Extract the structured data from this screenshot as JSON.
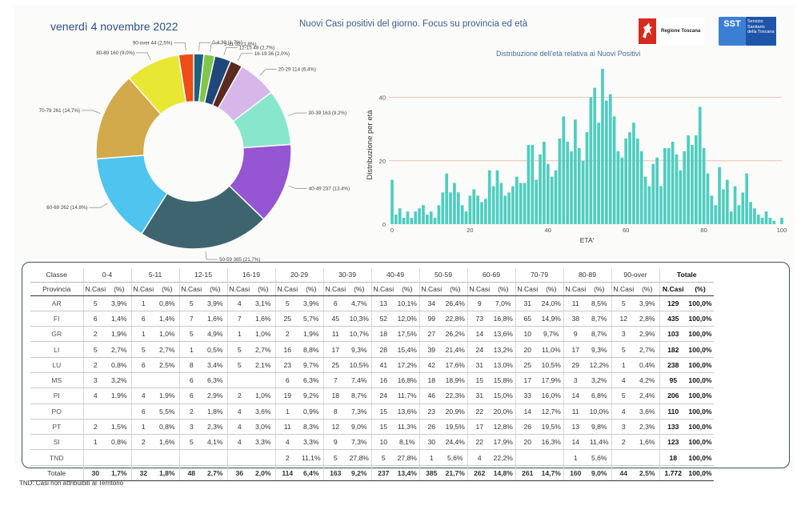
{
  "header": {
    "date": "venerdì 4 novembre 2022",
    "title": "Nuovi Casi positivi del giorno. Focus su provincia ed età"
  },
  "logos": {
    "regione": "Regione Toscana",
    "sst_mark": "SST",
    "sst_name": "Servizio Sanitario della Toscana"
  },
  "chart_data": [
    {
      "type": "pie",
      "donut": true,
      "slices": [
        {
          "label": "0-4 30 (1,7%)",
          "value": 30,
          "color": "#1f5f80"
        },
        {
          "label": "5-11 32 (1,8%)",
          "value": 32,
          "color": "#7fc64a"
        },
        {
          "label": "12-15 48 (2,7%)",
          "value": 48,
          "color": "#20467a"
        },
        {
          "label": "16-19 36 (2,0%)",
          "value": 36,
          "color": "#5a2a1e"
        },
        {
          "label": "20-29 114 (6,4%)",
          "value": 114,
          "color": "#d7b6ea"
        },
        {
          "label": "30-39 163 (9,2%)",
          "value": 163,
          "color": "#87e6cc"
        },
        {
          "label": "40-49 237 (13,4%)",
          "value": 237,
          "color": "#9655d2"
        },
        {
          "label": "50-59 385 (21,7%)",
          "value": 385,
          "color": "#3e6470"
        },
        {
          "label": "60-69 262 (14,8%)",
          "value": 262,
          "color": "#4ec4ef"
        },
        {
          "label": "70-79 261 (14,7%)",
          "value": 261,
          "color": "#d2a94b"
        },
        {
          "label": "80-89 160 (9,0%)",
          "value": 160,
          "color": "#e8e734"
        },
        {
          "label": "90-over 44 (2,5%)",
          "value": 44,
          "color": "#ef4d16"
        }
      ]
    },
    {
      "type": "bar",
      "title": "Distribuzione dell'età relativa ai Nuovi Positivi",
      "xlabel": "ETA'",
      "ylabel": "Distribuzione per età",
      "xlim": [
        0,
        100
      ],
      "ylim": [
        0,
        50
      ],
      "yticks": [
        0,
        20,
        40
      ],
      "xticks": [
        0,
        20,
        40,
        60,
        80,
        100
      ],
      "gridlines": [
        20,
        40
      ],
      "color": "#4ecdc0",
      "x": [
        0,
        1,
        2,
        3,
        4,
        5,
        6,
        7,
        8,
        9,
        10,
        11,
        12,
        13,
        14,
        15,
        16,
        17,
        18,
        19,
        20,
        21,
        22,
        23,
        24,
        25,
        26,
        27,
        28,
        29,
        30,
        31,
        32,
        33,
        34,
        35,
        36,
        37,
        38,
        39,
        40,
        41,
        42,
        43,
        44,
        45,
        46,
        47,
        48,
        49,
        50,
        51,
        52,
        53,
        54,
        55,
        56,
        57,
        58,
        59,
        60,
        61,
        62,
        63,
        64,
        65,
        66,
        67,
        68,
        69,
        70,
        71,
        72,
        73,
        74,
        75,
        76,
        77,
        78,
        79,
        80,
        81,
        82,
        83,
        84,
        85,
        86,
        87,
        88,
        89,
        90,
        91,
        92,
        93,
        94,
        95,
        96,
        97,
        98,
        99,
        100
      ],
      "values": [
        14,
        3,
        5,
        2,
        4,
        2,
        4,
        5,
        6,
        3,
        4,
        2,
        6,
        10,
        16,
        10,
        13,
        10,
        6,
        4,
        9,
        11,
        9,
        7,
        8,
        17,
        12,
        17,
        13,
        9,
        10,
        12,
        15,
        13,
        13,
        25,
        25,
        14,
        22,
        26,
        19,
        15,
        17,
        27,
        34,
        26,
        23,
        33,
        24,
        20,
        29,
        40,
        43,
        32,
        49,
        39,
        41,
        34,
        23,
        21,
        27,
        29,
        32,
        27,
        23,
        15,
        12,
        19,
        21,
        12,
        24,
        24,
        26,
        22,
        17,
        23,
        28,
        25,
        28,
        37,
        24,
        16,
        9,
        6,
        18,
        11,
        14,
        4,
        12,
        6,
        10,
        16,
        7,
        5,
        3,
        2,
        4,
        2,
        1,
        0,
        2
      ]
    }
  ],
  "table": {
    "classe_label": "Classe",
    "provincia_label": "Provincia",
    "groups": [
      "0-4",
      "5-11",
      "12-15",
      "16-19",
      "20-29",
      "30-39",
      "40-49",
      "50-59",
      "60-69",
      "70-79",
      "80-89",
      "90-over"
    ],
    "totale_label": "Totale",
    "ncasi_label": "N.Casi",
    "pct_label": "(%)",
    "rows": [
      {
        "prov": "AR",
        "cells": [
          [
            "5",
            "3,9%"
          ],
          [
            "1",
            "0,8%"
          ],
          [
            "5",
            "3,9%"
          ],
          [
            "4",
            "3,1%"
          ],
          [
            "5",
            "3,9%"
          ],
          [
            "6",
            "4,7%"
          ],
          [
            "13",
            "10,1%"
          ],
          [
            "34",
            "26,4%"
          ],
          [
            "9",
            "7,0%"
          ],
          [
            "31",
            "24,0%"
          ],
          [
            "11",
            "8,5%"
          ],
          [
            "5",
            "3,9%"
          ]
        ],
        "total": [
          "129",
          "100,0%"
        ]
      },
      {
        "prov": "FI",
        "cells": [
          [
            "6",
            "1,4%"
          ],
          [
            "6",
            "1,4%"
          ],
          [
            "7",
            "1,6%"
          ],
          [
            "7",
            "1,6%"
          ],
          [
            "25",
            "5,7%"
          ],
          [
            "45",
            "10,3%"
          ],
          [
            "52",
            "12,0%"
          ],
          [
            "99",
            "22,8%"
          ],
          [
            "73",
            "16,8%"
          ],
          [
            "65",
            "14,9%"
          ],
          [
            "38",
            "8,7%"
          ],
          [
            "12",
            "2,8%"
          ]
        ],
        "total": [
          "435",
          "100,0%"
        ]
      },
      {
        "prov": "GR",
        "cells": [
          [
            "2",
            "1,9%"
          ],
          [
            "1",
            "1,0%"
          ],
          [
            "5",
            "4,9%"
          ],
          [
            "1",
            "1,0%"
          ],
          [
            "2",
            "1,9%"
          ],
          [
            "11",
            "10,7%"
          ],
          [
            "18",
            "17,5%"
          ],
          [
            "27",
            "26,2%"
          ],
          [
            "14",
            "13,6%"
          ],
          [
            "10",
            "9,7%"
          ],
          [
            "9",
            "8,7%"
          ],
          [
            "3",
            "2,9%"
          ]
        ],
        "total": [
          "103",
          "100,0%"
        ]
      },
      {
        "prov": "LI",
        "cells": [
          [
            "5",
            "2,7%"
          ],
          [
            "5",
            "2,7%"
          ],
          [
            "1",
            "0,5%"
          ],
          [
            "5",
            "2,7%"
          ],
          [
            "16",
            "8,8%"
          ],
          [
            "17",
            "9,3%"
          ],
          [
            "28",
            "15,4%"
          ],
          [
            "39",
            "21,4%"
          ],
          [
            "24",
            "13,2%"
          ],
          [
            "20",
            "11,0%"
          ],
          [
            "17",
            "9,3%"
          ],
          [
            "5",
            "2,7%"
          ]
        ],
        "total": [
          "182",
          "100,0%"
        ]
      },
      {
        "prov": "LU",
        "cells": [
          [
            "2",
            "0,8%"
          ],
          [
            "6",
            "2,5%"
          ],
          [
            "8",
            "3,4%"
          ],
          [
            "5",
            "2,1%"
          ],
          [
            "23",
            "9,7%"
          ],
          [
            "25",
            "10,5%"
          ],
          [
            "41",
            "17,2%"
          ],
          [
            "42",
            "17,6%"
          ],
          [
            "31",
            "13,0%"
          ],
          [
            "25",
            "10,5%"
          ],
          [
            "29",
            "12,2%"
          ],
          [
            "1",
            "0,4%"
          ]
        ],
        "total": [
          "238",
          "100,0%"
        ]
      },
      {
        "prov": "MS",
        "cells": [
          [
            "3",
            "3,2%"
          ],
          [
            "",
            ""
          ],
          [
            "6",
            "6,3%"
          ],
          [
            "",
            ""
          ],
          [
            "6",
            "6,3%"
          ],
          [
            "7",
            "7,4%"
          ],
          [
            "16",
            "16,8%"
          ],
          [
            "18",
            "18,9%"
          ],
          [
            "15",
            "15,8%"
          ],
          [
            "17",
            "17,9%"
          ],
          [
            "3",
            "3,2%"
          ],
          [
            "4",
            "4,2%"
          ]
        ],
        "total": [
          "95",
          "100,0%"
        ]
      },
      {
        "prov": "PI",
        "cells": [
          [
            "4",
            "1,9%"
          ],
          [
            "4",
            "1,9%"
          ],
          [
            "6",
            "2,9%"
          ],
          [
            "2",
            "1,0%"
          ],
          [
            "19",
            "9,2%"
          ],
          [
            "18",
            "8,7%"
          ],
          [
            "24",
            "11,7%"
          ],
          [
            "46",
            "22,3%"
          ],
          [
            "31",
            "15,0%"
          ],
          [
            "33",
            "16,0%"
          ],
          [
            "14",
            "6,8%"
          ],
          [
            "5",
            "2,4%"
          ]
        ],
        "total": [
          "206",
          "100,0%"
        ]
      },
      {
        "prov": "PO",
        "cells": [
          [
            "",
            ""
          ],
          [
            "6",
            "5,5%"
          ],
          [
            "2",
            "1,8%"
          ],
          [
            "4",
            "3,6%"
          ],
          [
            "1",
            "0,9%"
          ],
          [
            "8",
            "7,3%"
          ],
          [
            "15",
            "13,6%"
          ],
          [
            "23",
            "20,9%"
          ],
          [
            "22",
            "20,0%"
          ],
          [
            "14",
            "12,7%"
          ],
          [
            "11",
            "10,0%"
          ],
          [
            "4",
            "3,6%"
          ]
        ],
        "total": [
          "110",
          "100,0%"
        ]
      },
      {
        "prov": "PT",
        "cells": [
          [
            "2",
            "1,5%"
          ],
          [
            "1",
            "0,8%"
          ],
          [
            "3",
            "2,3%"
          ],
          [
            "4",
            "3,0%"
          ],
          [
            "11",
            "8,3%"
          ],
          [
            "12",
            "9,0%"
          ],
          [
            "15",
            "11,3%"
          ],
          [
            "26",
            "19,5%"
          ],
          [
            "17",
            "12,8%"
          ],
          [
            "26",
            "19,5%"
          ],
          [
            "13",
            "9,8%"
          ],
          [
            "3",
            "2,3%"
          ]
        ],
        "total": [
          "133",
          "100,0%"
        ]
      },
      {
        "prov": "SI",
        "cells": [
          [
            "1",
            "0,8%"
          ],
          [
            "2",
            "1,6%"
          ],
          [
            "5",
            "4,1%"
          ],
          [
            "4",
            "3,3%"
          ],
          [
            "4",
            "3,3%"
          ],
          [
            "9",
            "7,3%"
          ],
          [
            "10",
            "8,1%"
          ],
          [
            "30",
            "24,4%"
          ],
          [
            "22",
            "17,9%"
          ],
          [
            "20",
            "16,3%"
          ],
          [
            "14",
            "11,4%"
          ],
          [
            "2",
            "1,6%"
          ]
        ],
        "total": [
          "123",
          "100,0%"
        ]
      },
      {
        "prov": "TND",
        "cells": [
          [
            "",
            ""
          ],
          [
            "",
            ""
          ],
          [
            "",
            ""
          ],
          [
            "",
            ""
          ],
          [
            "2",
            "11,1%"
          ],
          [
            "5",
            "27,8%"
          ],
          [
            "5",
            "27,8%"
          ],
          [
            "1",
            "5,6%"
          ],
          [
            "4",
            "22,2%"
          ],
          [
            "",
            ""
          ],
          [
            "1",
            "5,6%"
          ],
          [
            "",
            ""
          ]
        ],
        "total": [
          "18",
          "100,0%"
        ]
      }
    ],
    "totals": {
      "label": "Totale",
      "cells": [
        [
          "30",
          "1,7%"
        ],
        [
          "32",
          "1,8%"
        ],
        [
          "48",
          "2,7%"
        ],
        [
          "36",
          "2,0%"
        ],
        [
          "114",
          "6,4%"
        ],
        [
          "163",
          "9,2%"
        ],
        [
          "237",
          "13,4%"
        ],
        [
          "385",
          "21,7%"
        ],
        [
          "262",
          "14,8%"
        ],
        [
          "261",
          "14,7%"
        ],
        [
          "160",
          "9,0%"
        ],
        [
          "44",
          "2,5%"
        ]
      ],
      "total": [
        "1.772",
        "100,0%"
      ]
    },
    "note": "TND:  Casi non attribuibili al Territorio"
  }
}
